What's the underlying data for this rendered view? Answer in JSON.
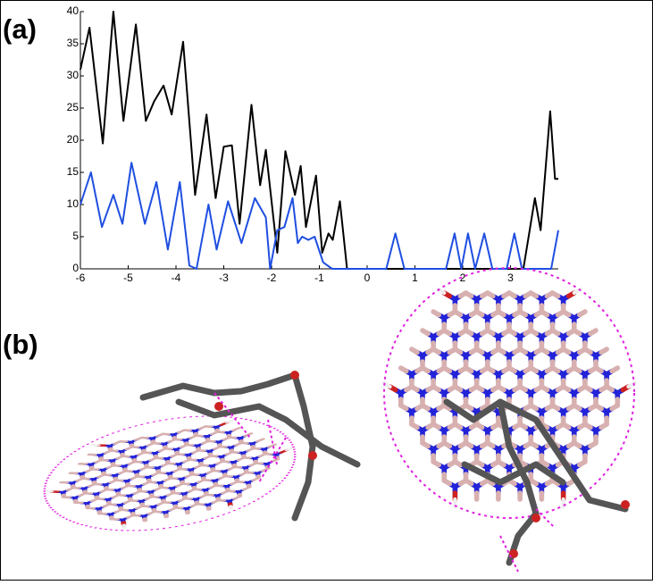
{
  "panel_labels": [
    "(a)",
    "(b)"
  ],
  "chart_data": {
    "type": "line",
    "xlim": [
      -6,
      4
    ],
    "ylim": [
      0,
      40
    ],
    "xticks": [
      -6,
      -5,
      -4,
      -3,
      -2,
      -1,
      0,
      1,
      2,
      3
    ],
    "yticks": [
      0,
      5,
      10,
      15,
      20,
      25,
      30,
      35,
      40
    ],
    "series": [
      {
        "color": "#000000",
        "x": [
          -6,
          -5.81,
          -5.53,
          -5.31,
          -5.1,
          -4.84,
          -4.63,
          -4.46,
          -4.26,
          -4.09,
          -3.85,
          -3.6,
          -3.36,
          -3.17,
          -3.0,
          -2.83,
          -2.67,
          -2.42,
          -2.24,
          -2.12,
          -1.88,
          -1.71,
          -1.51,
          -1.39,
          -1.28,
          -1.07,
          -0.94,
          -0.81,
          -0.72,
          -0.57,
          -0.42,
          3.27,
          3.51,
          3.63,
          3.83,
          3.93,
          4.0
        ],
        "values": [
          31,
          37.5,
          19.5,
          40,
          23,
          38,
          23,
          26,
          28.5,
          24,
          35.3,
          11.5,
          24,
          11,
          19,
          19.2,
          7,
          25.5,
          13,
          18.5,
          2.5,
          18.3,
          11.5,
          16,
          6.5,
          14.5,
          2.5,
          5.5,
          4.5,
          10.5,
          0,
          0,
          11,
          6,
          24.5,
          14,
          14
        ]
      },
      {
        "color": "#1f4fe0",
        "x": [
          -6,
          -5.78,
          -5.55,
          -5.31,
          -5.12,
          -4.93,
          -4.65,
          -4.41,
          -4.17,
          -3.92,
          -3.72,
          -3.57,
          -3.32,
          -3.15,
          -2.91,
          -2.63,
          -2.35,
          -2.12,
          -2.03,
          -1.88,
          -1.73,
          -1.56,
          -1.45,
          -1.36,
          -1.23,
          -1.1,
          -0.92,
          -0.73,
          0.4,
          0.59,
          0.78,
          1.65,
          1.83,
          1.97,
          2.11,
          2.26,
          2.45,
          2.62,
          2.92,
          3.08,
          3.24,
          3.85,
          4.0
        ],
        "values": [
          10,
          15,
          6.5,
          11.5,
          7,
          16.5,
          7,
          13.5,
          3,
          13.5,
          0.5,
          0,
          10,
          3,
          10.5,
          4,
          11,
          8,
          0,
          6,
          6.5,
          11,
          4,
          5,
          4.5,
          5,
          1,
          0,
          0,
          5.5,
          0,
          0,
          5.5,
          0,
          5.5,
          0,
          5.5,
          0,
          0,
          5.5,
          0,
          0,
          6
        ]
      }
    ]
  }
}
